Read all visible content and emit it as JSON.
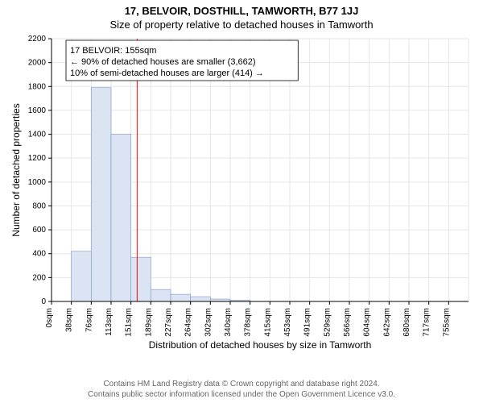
{
  "title_1": "17, BELVOIR, DOSTHILL, TAMWORTH, B77 1JJ",
  "title_2": "Size of property relative to detached houses in Tamworth",
  "chart": {
    "type": "histogram",
    "ylabel": "Number of detached properties",
    "xlabel": "Distribution of detached houses by size in Tamworth",
    "ylim": [
      0,
      2200
    ],
    "ytick_step": 200,
    "x_categories": [
      "0sqm",
      "38sqm",
      "76sqm",
      "113sqm",
      "151sqm",
      "189sqm",
      "227sqm",
      "264sqm",
      "302sqm",
      "340sqm",
      "378sqm",
      "415sqm",
      "453sqm",
      "491sqm",
      "529sqm",
      "566sqm",
      "604sqm",
      "642sqm",
      "680sqm",
      "717sqm",
      "755sqm"
    ],
    "values": [
      0,
      420,
      1790,
      1400,
      370,
      100,
      60,
      40,
      20,
      10,
      0,
      0,
      0,
      0,
      0,
      0,
      0,
      0,
      0,
      0,
      0
    ],
    "bar_fill": "#dbe4f3",
    "bar_stroke": "#7e95c4",
    "bar_stroke_width": 0.6,
    "grid_color": "#e6e6e6",
    "axis_color": "#000000",
    "background": "#ffffff",
    "tick_font_size": 10,
    "axis_label_font_size": 12,
    "marker_line_x_value": 155,
    "marker_line_color": "#ff0000",
    "annotation_box": {
      "lines": [
        "17 BELVOIR: 155sqm",
        "← 90% of detached houses are smaller (3,662)",
        "10% of semi-detached houses are larger (414) →"
      ],
      "font_size": 11,
      "border_color": "#000000",
      "background": "#ffffff"
    }
  },
  "footer_1": "Contains HM Land Registry data © Crown copyright and database right 2024.",
  "footer_2": "Contains public sector information licensed under the Open Government Licence v3.0."
}
